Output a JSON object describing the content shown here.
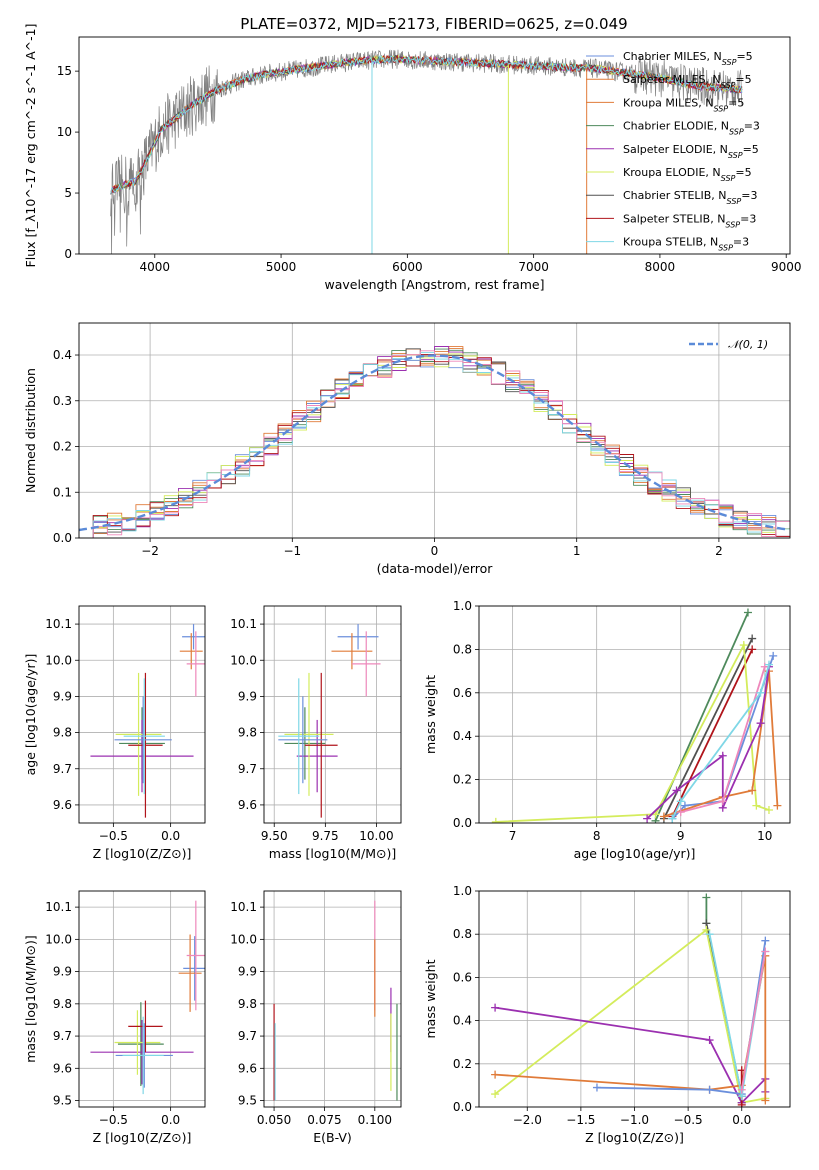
{
  "title": "PLATE=0372, MJD=52173, FIBERID=0625, z=0.049",
  "colors": {
    "data": "#808080",
    "runs": [
      "#6b8fdc",
      "#e07b39",
      "#e07b39",
      "#4e8a5c",
      "#9b30b0",
      "#d4ec5c",
      "#505050",
      "#b0141b",
      "#7fd7e6"
    ],
    "pink": "#ee88bb",
    "gaussian": "#5b8bd8",
    "grid": "#b0b0b0"
  },
  "chart_data": [
    {
      "type": "line",
      "panel": "spectrum",
      "xlabel": "wavelength [Angstrom, rest frame]",
      "ylabel": "Flux [f_λ10^-17 erg cm^-2 s^-1 A^-1]",
      "xlim": [
        3400,
        9030
      ],
      "ylim": [
        0,
        17.8
      ],
      "xticks": [
        4000,
        5000,
        6000,
        7000,
        8000,
        9000
      ],
      "yticks": [
        0,
        5,
        10,
        15
      ],
      "xtick_labels": [
        "4000",
        "5000",
        "6000",
        "7000",
        "8000",
        "9000"
      ],
      "ytick_labels": [
        "0",
        "5",
        "10",
        "15"
      ],
      "legend": [
        {
          "base": "Chabrier MILES, N",
          "n": "5"
        },
        {
          "base": "Salpeter MILES, N",
          "n": "5"
        },
        {
          "base": "Kroupa MILES, N",
          "n": "5"
        },
        {
          "base": "Chabrier ELODIE, N",
          "n": "3"
        },
        {
          "base": "Salpeter ELODIE, N",
          "n": "5"
        },
        {
          "base": "Kroupa ELODIE, N",
          "n": "5"
        },
        {
          "base": "Chabrier STELIB, N",
          "n": "3"
        },
        {
          "base": "Salpeter STELIB, N",
          "n": "3"
        },
        {
          "base": "Kroupa STELIB, N",
          "n": "3"
        }
      ],
      "legend_sub": "SSP",
      "legend_position": "right",
      "continuum": {
        "x": [
          3650,
          3750,
          3850,
          3950,
          4050,
          4150,
          4300,
          4500,
          4700,
          4900,
          5100,
          5300,
          5500,
          5700,
          5900,
          6100,
          6300,
          6500,
          6700,
          6900,
          7100,
          7300,
          7500,
          7700,
          7900,
          8100,
          8300,
          8500,
          8600
        ],
        "y": [
          5.2,
          5.6,
          6.0,
          8.0,
          10.2,
          11.0,
          12.3,
          13.5,
          14.3,
          14.8,
          15.1,
          15.4,
          15.7,
          15.9,
          16.0,
          15.9,
          15.8,
          15.7,
          15.6,
          15.5,
          15.4,
          15.3,
          15.2,
          14.9,
          14.6,
          14.2,
          13.8,
          13.6,
          13.5
        ]
      }
    },
    {
      "type": "bar",
      "panel": "residual-histogram",
      "xlabel": "(data-model)/error",
      "ylabel": "Normed distribution",
      "xlim": [
        -2.5,
        2.5
      ],
      "ylim": [
        0,
        0.47
      ],
      "xticks": [
        -2,
        -1,
        0,
        1,
        2
      ],
      "yticks": [
        0,
        0.1,
        0.2,
        0.3,
        0.4
      ],
      "xtick_labels": [
        "−2",
        "−1",
        "0",
        "1",
        "2"
      ],
      "ytick_labels": [
        "0.0",
        "0.1",
        "0.2",
        "0.3",
        "0.4"
      ],
      "legend": [
        "𝒩(0, 1)"
      ],
      "legend_position": "top-right",
      "bin_width": 0.1
    },
    {
      "type": "scatter",
      "panel": "age-vs-Z",
      "xlabel": "Z [log10(Z/Z⊙)]",
      "ylabel": "age  [log10(age/yr)]",
      "xlim": [
        -0.8,
        0.3
      ],
      "ylim": [
        9.55,
        10.15
      ],
      "xticks": [
        -0.5,
        0.0
      ],
      "yticks": [
        9.6,
        9.7,
        9.8,
        9.9,
        10.0,
        10.1
      ],
      "xtick_labels": [
        "−0.5",
        "0.0"
      ],
      "ytick_labels": [
        "9.6",
        "9.7",
        "9.8",
        "9.9",
        "10.0",
        "10.1"
      ],
      "points": [
        {
          "x": 0.2,
          "y": 10.065,
          "xerr": 0.1,
          "yerr": 0.035,
          "c": 0
        },
        {
          "x": 0.18,
          "y": 10.025,
          "xerr": 0.1,
          "yerr": 0.05,
          "c": 1
        },
        {
          "x": 0.22,
          "y": 9.99,
          "xerr": 0.08,
          "yerr": 0.09,
          "c": 9
        },
        {
          "x": -0.25,
          "y": 9.77,
          "xerr": 0.2,
          "yerr": 0.1,
          "c": 3
        },
        {
          "x": -0.25,
          "y": 9.735,
          "xerr": 0.45,
          "yerr": 0.1,
          "c": 4
        },
        {
          "x": -0.28,
          "y": 9.795,
          "xerr": 0.2,
          "yerr": 0.17,
          "c": 5
        },
        {
          "x": -0.22,
          "y": 9.765,
          "xerr": 0.15,
          "yerr": 0.2,
          "c": 7
        },
        {
          "x": -0.24,
          "y": 9.78,
          "xerr": 0.25,
          "yerr": 0.12,
          "c": 0
        },
        {
          "x": -0.23,
          "y": 9.79,
          "xerr": 0.18,
          "yerr": 0.16,
          "c": 8
        }
      ]
    },
    {
      "type": "scatter",
      "panel": "age-vs-mass",
      "xlabel": "mass [log10(M/M⊙)]",
      "ylabel": "",
      "xlim": [
        9.45,
        10.12
      ],
      "ylim": [
        9.55,
        10.15
      ],
      "xticks": [
        9.5,
        9.75,
        10.0
      ],
      "yticks": [
        9.6,
        9.7,
        9.8,
        9.9,
        10.0,
        10.1
      ],
      "xtick_labels": [
        "9.50",
        "9.75",
        "10.00"
      ],
      "ytick_labels": [
        "9.6",
        "9.7",
        "9.8",
        "9.9",
        "10.0",
        "10.1"
      ],
      "points": [
        {
          "x": 9.91,
          "y": 10.065,
          "xerr": 0.1,
          "yerr": 0.035,
          "c": 0
        },
        {
          "x": 9.88,
          "y": 10.025,
          "xerr": 0.1,
          "yerr": 0.05,
          "c": 1
        },
        {
          "x": 9.95,
          "y": 9.99,
          "xerr": 0.07,
          "yerr": 0.09,
          "c": 9
        },
        {
          "x": 9.65,
          "y": 9.77,
          "xerr": 0.1,
          "yerr": 0.1,
          "c": 3
        },
        {
          "x": 9.71,
          "y": 9.735,
          "xerr": 0.1,
          "yerr": 0.1,
          "c": 4
        },
        {
          "x": 9.67,
          "y": 9.795,
          "xerr": 0.12,
          "yerr": 0.17,
          "c": 5
        },
        {
          "x": 9.73,
          "y": 9.765,
          "xerr": 0.08,
          "yerr": 0.2,
          "c": 7
        },
        {
          "x": 9.64,
          "y": 9.78,
          "xerr": 0.12,
          "yerr": 0.12,
          "c": 0
        },
        {
          "x": 9.62,
          "y": 9.79,
          "xerr": 0.1,
          "yerr": 0.16,
          "c": 8
        }
      ]
    },
    {
      "type": "line",
      "panel": "mass-weight-vs-age",
      "xlabel": "age  [log10(age/yr)]",
      "ylabel": "mass weight",
      "xlim": [
        6.6,
        10.3
      ],
      "ylim": [
        0,
        1.0
      ],
      "xticks": [
        7,
        8,
        9,
        10
      ],
      "yticks": [
        0,
        0.2,
        0.4,
        0.6,
        0.8,
        1.0
      ],
      "xtick_labels": [
        "7",
        "8",
        "9",
        "10"
      ],
      "ytick_labels": [
        "0.0",
        "0.2",
        "0.4",
        "0.6",
        "0.8",
        "1.0"
      ],
      "series": [
        {
          "c": 3,
          "x": [
            8.7,
            9.8
          ],
          "y": [
            0.01,
            0.97
          ]
        },
        {
          "c": 6,
          "x": [
            8.8,
            9.85
          ],
          "y": [
            0.02,
            0.85
          ]
        },
        {
          "c": 7,
          "x": [
            8.9,
            9.85
          ],
          "y": [
            0.03,
            0.8
          ]
        },
        {
          "c": 5,
          "x": [
            6.8,
            8.7,
            9.75,
            9.9,
            10.05
          ],
          "y": [
            0.005,
            0.04,
            0.82,
            0.08,
            0.06
          ]
        },
        {
          "c": 0,
          "x": [
            8.9,
            9.05,
            9.5,
            10.1
          ],
          "y": [
            0.02,
            0.08,
            0.1,
            0.77
          ]
        },
        {
          "c": 1,
          "x": [
            8.8,
            9.5,
            9.85,
            10.05,
            10.15
          ],
          "y": [
            0.03,
            0.12,
            0.15,
            0.7,
            0.08
          ]
        },
        {
          "c": 4,
          "x": [
            8.6,
            8.95,
            9.5,
            9.5,
            9.95,
            10.05
          ],
          "y": [
            0.02,
            0.15,
            0.31,
            0.07,
            0.46,
            0.72
          ]
        },
        {
          "c": 9,
          "x": [
            9.0,
            9.5,
            10.0
          ],
          "y": [
            0.05,
            0.1,
            0.72
          ]
        },
        {
          "c": 8,
          "x": [
            8.9,
            9.0,
            9.95,
            10.05
          ],
          "y": [
            0.02,
            0.1,
            0.6,
            0.73
          ]
        }
      ]
    },
    {
      "type": "scatter",
      "panel": "mass-vs-Z",
      "xlabel": "Z [log10(Z/Z⊙)]",
      "ylabel": "mass [log10(M/M⊙)]",
      "xlim": [
        -0.8,
        0.3
      ],
      "ylim": [
        9.48,
        10.15
      ],
      "xticks": [
        -0.5,
        0.0
      ],
      "yticks": [
        9.5,
        9.6,
        9.7,
        9.8,
        9.9,
        10.0,
        10.1
      ],
      "xtick_labels": [
        "−0.5",
        "0.0"
      ],
      "ytick_labels": [
        "9.5",
        "9.6",
        "9.7",
        "9.8",
        "9.9",
        "10.0",
        "10.1"
      ],
      "points": [
        {
          "x": 0.21,
          "y": 9.91,
          "xerr": 0.1,
          "yerr": 0.1,
          "c": 0
        },
        {
          "x": 0.17,
          "y": 9.895,
          "xerr": 0.1,
          "yerr": 0.12,
          "c": 1
        },
        {
          "x": 0.22,
          "y": 9.95,
          "xerr": 0.08,
          "yerr": 0.17,
          "c": 9
        },
        {
          "x": -0.26,
          "y": 9.675,
          "xerr": 0.2,
          "yerr": 0.13,
          "c": 3
        },
        {
          "x": -0.25,
          "y": 9.65,
          "xerr": 0.45,
          "yerr": 0.1,
          "c": 4
        },
        {
          "x": -0.29,
          "y": 9.68,
          "xerr": 0.2,
          "yerr": 0.1,
          "c": 5
        },
        {
          "x": -0.22,
          "y": 9.73,
          "xerr": 0.15,
          "yerr": 0.08,
          "c": 7
        },
        {
          "x": -0.23,
          "y": 9.64,
          "xerr": 0.25,
          "yerr": 0.1,
          "c": 0
        },
        {
          "x": -0.24,
          "y": 9.64,
          "xerr": 0.18,
          "yerr": 0.12,
          "c": 8
        }
      ]
    },
    {
      "type": "scatter",
      "panel": "mass-vs-EBV",
      "xlabel": "E(B-V)",
      "ylabel": "",
      "xlim": [
        0.045,
        0.113
      ],
      "ylim": [
        9.48,
        10.15
      ],
      "xticks": [
        0.05,
        0.075,
        0.1
      ],
      "yticks": [
        9.5,
        9.6,
        9.7,
        9.8,
        9.9,
        10.0,
        10.1
      ],
      "xtick_labels": [
        "0.050",
        "0.075",
        "0.100"
      ],
      "ytick_labels": [
        "9.5",
        "9.6",
        "9.7",
        "9.8",
        "9.9",
        "10.0",
        "10.1"
      ],
      "points": [
        {
          "x": 0.05,
          "y": 9.65,
          "xerr": 0,
          "yerr": 0.15,
          "c": 7
        },
        {
          "x": 0.0505,
          "y": 9.62,
          "xerr": 0,
          "yerr": 0.12,
          "c": 8
        },
        {
          "x": 0.1,
          "y": 9.95,
          "xerr": 0,
          "yerr": 0.17,
          "c": 9
        },
        {
          "x": 0.1,
          "y": 9.88,
          "xerr": 0,
          "yerr": 0.12,
          "c": 1
        },
        {
          "x": 0.108,
          "y": 9.75,
          "xerr": 0,
          "yerr": 0.1,
          "c": 4
        },
        {
          "x": 0.108,
          "y": 9.65,
          "xerr": 0,
          "yerr": 0.12,
          "c": 5
        },
        {
          "x": 0.111,
          "y": 9.65,
          "xerr": 0,
          "yerr": 0.15,
          "c": 3
        }
      ]
    },
    {
      "type": "line",
      "panel": "mass-weight-vs-Z",
      "xlabel": "Z [log10(Z/Z⊙)]",
      "ylabel": "mass weight",
      "xlim": [
        -2.45,
        0.45
      ],
      "ylim": [
        0,
        1.0
      ],
      "xticks": [
        -2.0,
        -1.5,
        -1.0,
        -0.5,
        0.0
      ],
      "yticks": [
        0,
        0.2,
        0.4,
        0.6,
        0.8,
        1.0
      ],
      "xtick_labels": [
        "−2.0",
        "−1.5",
        "−1.0",
        "−0.5",
        "0.0"
      ],
      "ytick_labels": [
        "0.0",
        "0.2",
        "0.4",
        "0.6",
        "0.8",
        "1.0"
      ],
      "series": [
        {
          "c": 3,
          "x": [
            -0.33,
            -0.33,
            0.0
          ],
          "y": [
            0.97,
            0.85,
            0.02
          ]
        },
        {
          "c": 6,
          "x": [
            -0.33,
            0.0
          ],
          "y": [
            0.85,
            0.05
          ]
        },
        {
          "c": 5,
          "x": [
            -2.3,
            -0.33,
            0.0,
            0.22
          ],
          "y": [
            0.06,
            0.82,
            0.02,
            0.04
          ]
        },
        {
          "c": 4,
          "x": [
            -2.3,
            -0.3,
            0.0,
            0.22,
            0.22
          ],
          "y": [
            0.46,
            0.31,
            0.02,
            0.13,
            0.07
          ]
        },
        {
          "c": 1,
          "x": [
            -2.3,
            -0.3,
            0.0,
            0.22,
            0.22
          ],
          "y": [
            0.15,
            0.08,
            0.1,
            0.7,
            0.03
          ]
        },
        {
          "c": 0,
          "x": [
            -1.35,
            -0.3,
            0.0,
            0.22
          ],
          "y": [
            0.09,
            0.08,
            0.06,
            0.77
          ]
        },
        {
          "c": 7,
          "x": [
            0.0,
            0.0
          ],
          "y": [
            0.01,
            0.17
          ]
        },
        {
          "c": 8,
          "x": [
            -0.3,
            0.0,
            0.22
          ],
          "y": [
            0.8,
            0.05,
            0.72
          ]
        },
        {
          "c": 9,
          "x": [
            0.0,
            0.22
          ],
          "y": [
            0.08,
            0.72
          ]
        }
      ]
    }
  ]
}
